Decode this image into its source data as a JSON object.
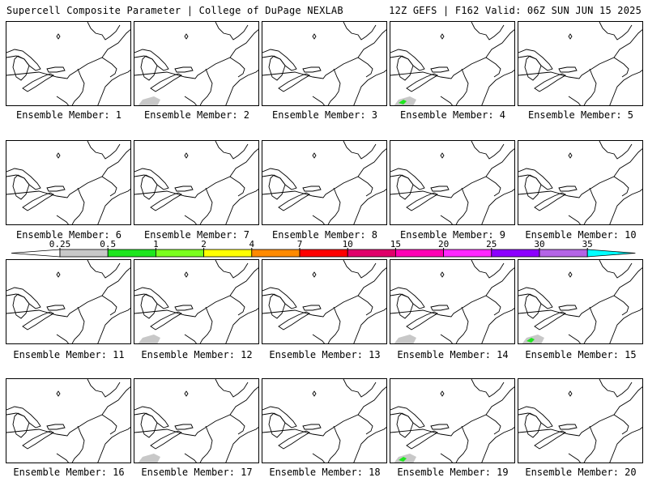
{
  "header": {
    "title": "Supercell Composite Parameter | College of DuPage NEXLAB",
    "run_info": "12Z GEFS | F162 Valid: 06Z SUN JUN 15 2025"
  },
  "colorbar": {
    "labels": [
      "0.25",
      "0.5",
      "1",
      "2",
      "4",
      "7",
      "10",
      "15",
      "20",
      "25",
      "30",
      "35"
    ],
    "colors": [
      "#c8c8c8",
      "#1ee61e",
      "#7aff1e",
      "#ffff00",
      "#ff8a00",
      "#ff0000",
      "#e0006a",
      "#ff00b4",
      "#ff28ff",
      "#8c00ff",
      "#b464e6",
      "#00ffff"
    ]
  },
  "members": [
    {
      "label": "Ensemble Member: 1",
      "shading": []
    },
    {
      "label": "Ensemble Member: 2",
      "shading": [
        "light-gray"
      ]
    },
    {
      "label": "Ensemble Member: 3",
      "shading": []
    },
    {
      "label": "Ensemble Member: 4",
      "shading": [
        "light-gray",
        "green"
      ]
    },
    {
      "label": "Ensemble Member: 5",
      "shading": []
    },
    {
      "label": "Ensemble Member: 6",
      "shading": []
    },
    {
      "label": "Ensemble Member: 7",
      "shading": []
    },
    {
      "label": "Ensemble Member: 8",
      "shading": []
    },
    {
      "label": "Ensemble Member: 9",
      "shading": []
    },
    {
      "label": "Ensemble Member: 10",
      "shading": []
    },
    {
      "label": "Ensemble Member: 11",
      "shading": []
    },
    {
      "label": "Ensemble Member: 12",
      "shading": [
        "light-gray"
      ]
    },
    {
      "label": "Ensemble Member: 13",
      "shading": []
    },
    {
      "label": "Ensemble Member: 14",
      "shading": [
        "light-gray"
      ]
    },
    {
      "label": "Ensemble Member: 15",
      "shading": [
        "light-gray",
        "green"
      ]
    },
    {
      "label": "Ensemble Member: 16",
      "shading": []
    },
    {
      "label": "Ensemble Member: 17",
      "shading": [
        "light-gray"
      ]
    },
    {
      "label": "Ensemble Member: 18",
      "shading": []
    },
    {
      "label": "Ensemble Member: 19",
      "shading": [
        "light-gray",
        "green"
      ]
    },
    {
      "label": "Ensemble Member: 20",
      "shading": []
    }
  ]
}
